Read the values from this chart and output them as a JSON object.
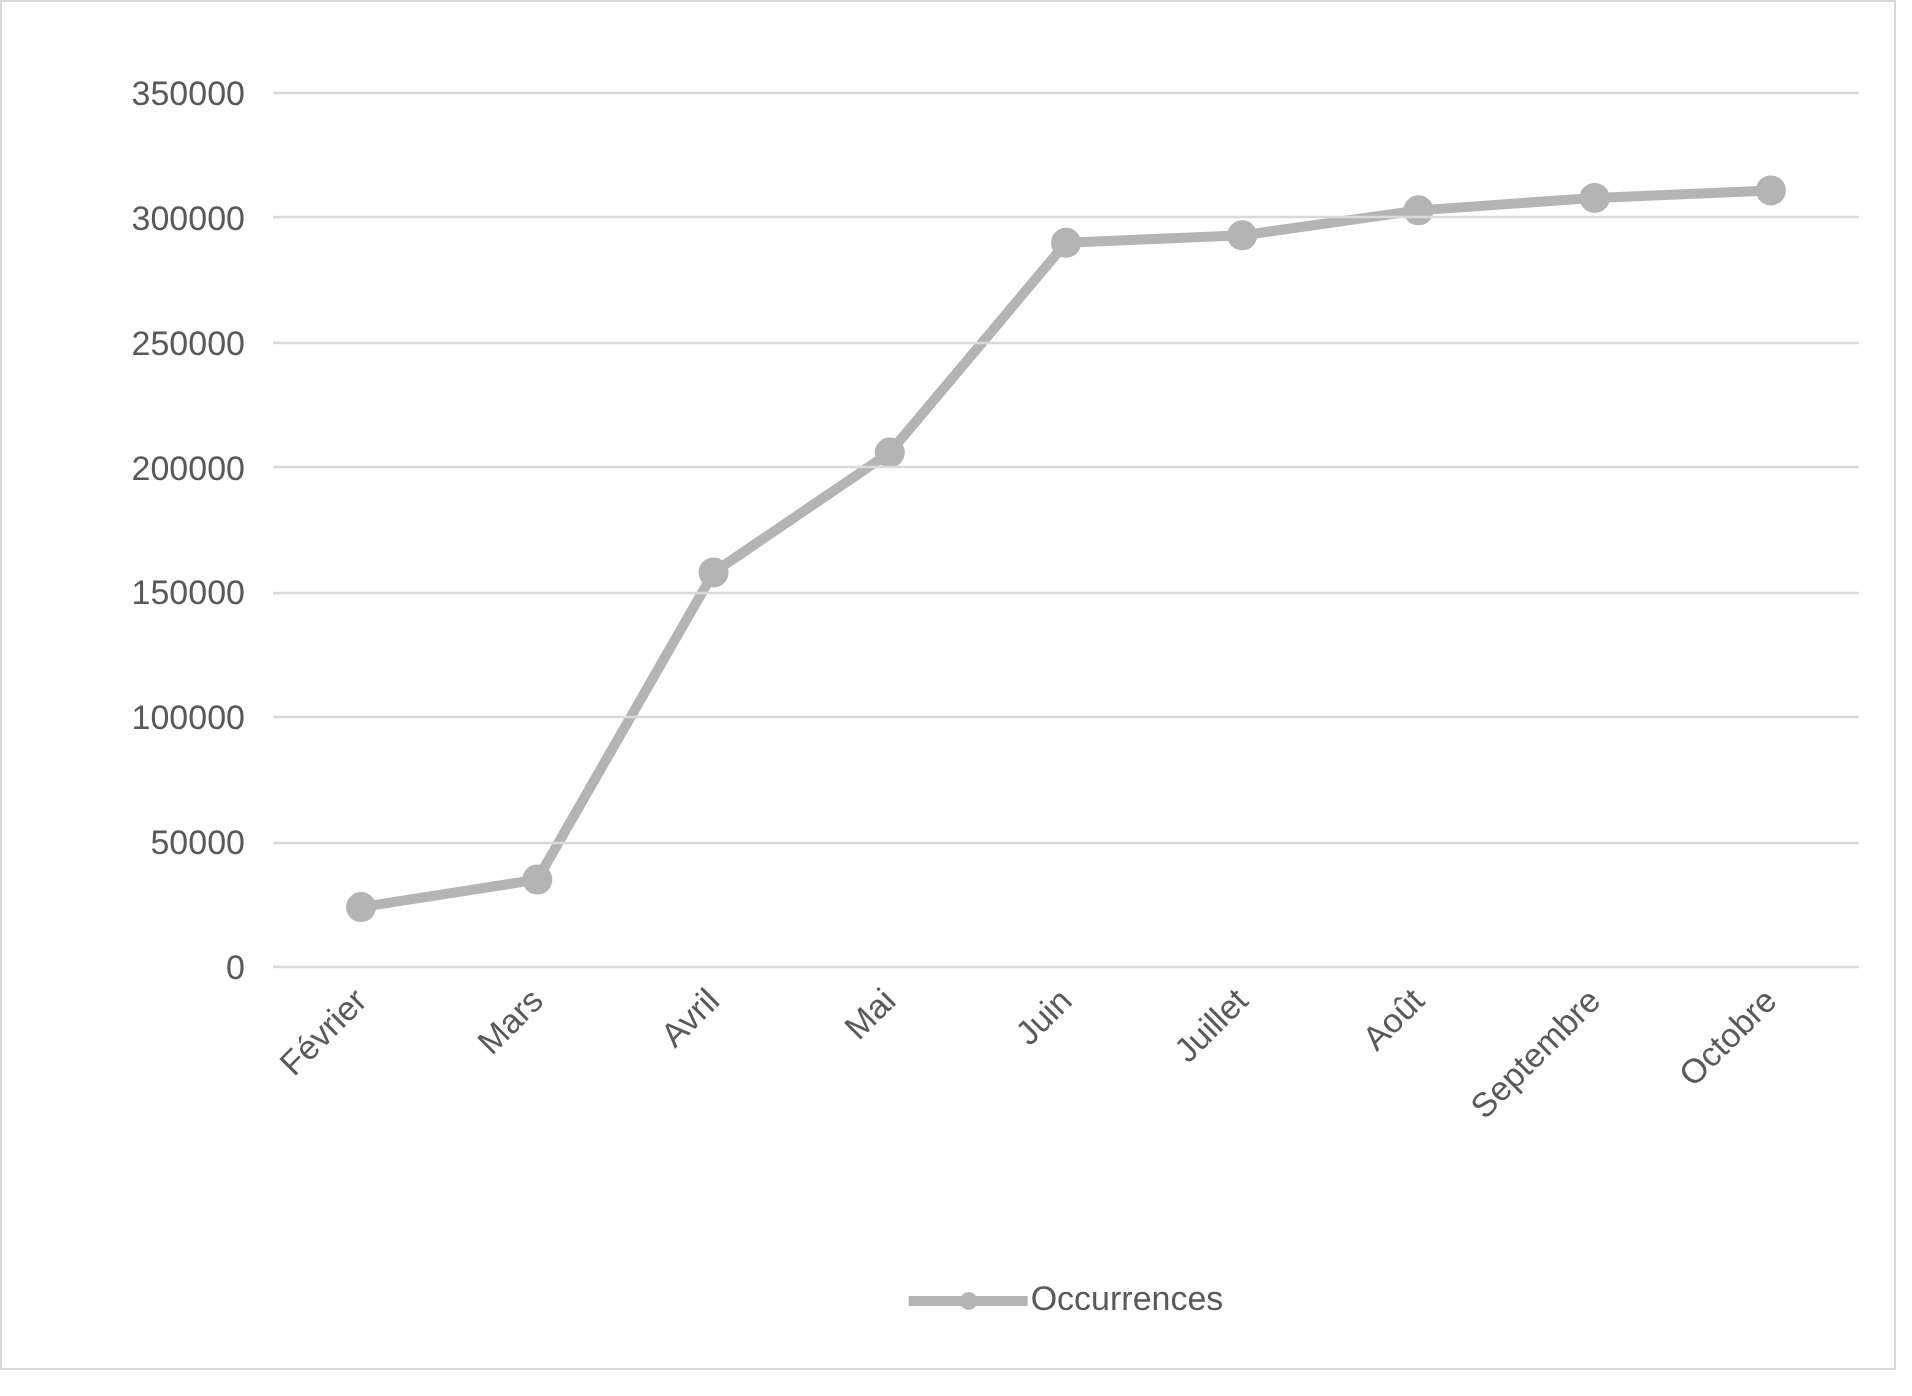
{
  "chart_data": {
    "type": "line",
    "categories": [
      "Février",
      "Mars",
      "Avril",
      "Mai",
      "Juin",
      "Juillet",
      "Août",
      "Septembre",
      "Octobre"
    ],
    "series": [
      {
        "name": "Occurrences",
        "color": "#b4b4b4",
        "values": [
          24000,
          35000,
          158000,
          206000,
          290000,
          293000,
          303000,
          308000,
          311000
        ]
      }
    ],
    "ylim": [
      0,
      350000
    ],
    "yticks": [
      0,
      50000,
      100000,
      150000,
      200000,
      250000,
      300000,
      350000
    ],
    "grid": "y",
    "legend": "bottom",
    "marker": "circle",
    "line_style": "solid"
  }
}
